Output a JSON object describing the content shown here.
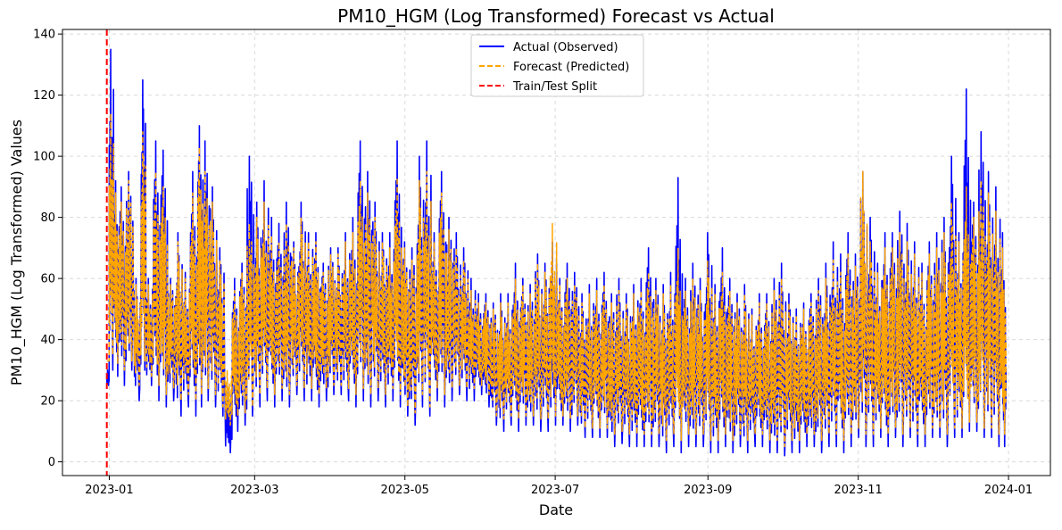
{
  "chart_data": {
    "type": "line",
    "title": "PM10_HGM (Log Transformed) Forecast vs Actual",
    "xlabel": "Date",
    "ylabel": "PM10_HGM (Log Transformed) Values",
    "xlim": [
      "2022-12-13",
      "2024-01-18"
    ],
    "ylim": [
      -4.5,
      141.5
    ],
    "grid": true,
    "legend_position": "top-center",
    "x_ticks": [
      {
        "date": "2023-01-01",
        "label": "2023-01"
      },
      {
        "date": "2023-03-01",
        "label": "2023-03"
      },
      {
        "date": "2023-05-01",
        "label": "2023-05"
      },
      {
        "date": "2023-07-01",
        "label": "2023-07"
      },
      {
        "date": "2023-09-01",
        "label": "2023-09"
      },
      {
        "date": "2023-11-01",
        "label": "2023-11"
      },
      {
        "date": "2024-01-01",
        "label": "2024-01"
      }
    ],
    "y_ticks": [
      {
        "value": 0,
        "label": "0"
      },
      {
        "value": 20,
        "label": "20"
      },
      {
        "value": 40,
        "label": "40"
      },
      {
        "value": 60,
        "label": "60"
      },
      {
        "value": 80,
        "label": "80"
      },
      {
        "value": 100,
        "label": "100"
      },
      {
        "value": 120,
        "label": "120"
      },
      {
        "value": 140,
        "label": "140"
      }
    ],
    "split_date": "2022-12-31",
    "series": [
      {
        "name": "Actual (Observed)",
        "color": "#0000ff",
        "style": "solid",
        "x": [
          "2022-12-31",
          "2023-01-01",
          "2023-01-03",
          "2023-01-05",
          "2023-01-08",
          "2023-01-11",
          "2023-01-14",
          "2023-01-16",
          "2023-01-19",
          "2023-01-22",
          "2023-01-25",
          "2023-01-28",
          "2023-01-31",
          "2023-02-03",
          "2023-02-06",
          "2023-02-08",
          "2023-02-11",
          "2023-02-14",
          "2023-02-17",
          "2023-02-20",
          "2023-02-23",
          "2023-02-26",
          "2023-03-01",
          "2023-03-04",
          "2023-03-07",
          "2023-03-10",
          "2023-03-13",
          "2023-03-16",
          "2023-03-19",
          "2023-03-22",
          "2023-03-25",
          "2023-03-28",
          "2023-03-31",
          "2023-04-03",
          "2023-04-06",
          "2023-04-09",
          "2023-04-12",
          "2023-04-15",
          "2023-04-18",
          "2023-04-21",
          "2023-04-24",
          "2023-04-27",
          "2023-04-30",
          "2023-05-03",
          "2023-05-06",
          "2023-05-09",
          "2023-05-12",
          "2023-05-15",
          "2023-05-18",
          "2023-05-21",
          "2023-05-24",
          "2023-05-27",
          "2023-05-30",
          "2023-06-02",
          "2023-06-05",
          "2023-06-08",
          "2023-06-11",
          "2023-06-14",
          "2023-06-17",
          "2023-06-20",
          "2023-06-23",
          "2023-06-26",
          "2023-06-29",
          "2023-07-02",
          "2023-07-05",
          "2023-07-08",
          "2023-07-11",
          "2023-07-14",
          "2023-07-17",
          "2023-07-20",
          "2023-07-23",
          "2023-07-26",
          "2023-07-29",
          "2023-08-01",
          "2023-08-04",
          "2023-08-07",
          "2023-08-10",
          "2023-08-13",
          "2023-08-16",
          "2023-08-19",
          "2023-08-22",
          "2023-08-25",
          "2023-08-28",
          "2023-08-31",
          "2023-09-03",
          "2023-09-06",
          "2023-09-09",
          "2023-09-12",
          "2023-09-15",
          "2023-09-18",
          "2023-09-21",
          "2023-09-24",
          "2023-09-27",
          "2023-09-30",
          "2023-10-03",
          "2023-10-06",
          "2023-10-09",
          "2023-10-12",
          "2023-10-15",
          "2023-10-18",
          "2023-10-21",
          "2023-10-24",
          "2023-10-27",
          "2023-10-30",
          "2023-11-02",
          "2023-11-05",
          "2023-11-08",
          "2023-11-11",
          "2023-11-14",
          "2023-11-17",
          "2023-11-20",
          "2023-11-23",
          "2023-11-26",
          "2023-11-29",
          "2023-12-02",
          "2023-12-05",
          "2023-12-08",
          "2023-12-11",
          "2023-12-14",
          "2023-12-17",
          "2023-12-20",
          "2023-12-23",
          "2023-12-26",
          "2023-12-29",
          "2023-12-31"
        ],
        "high": [
          30,
          135,
          92,
          90,
          95,
          60,
          125,
          60,
          105,
          102,
          60,
          75,
          62,
          95,
          110,
          105,
          90,
          70,
          25,
          60,
          65,
          100,
          85,
          92,
          80,
          78,
          85,
          72,
          85,
          75,
          75,
          65,
          70,
          70,
          75,
          80,
          105,
          95,
          85,
          75,
          75,
          105,
          72,
          70,
          100,
          105,
          75,
          95,
          80,
          75,
          70,
          60,
          55,
          55,
          52,
          55,
          55,
          65,
          60,
          58,
          68,
          65,
          72,
          60,
          65,
          62,
          55,
          58,
          60,
          62,
          55,
          60,
          55,
          58,
          60,
          70,
          60,
          58,
          62,
          93,
          60,
          65,
          60,
          75,
          58,
          70,
          60,
          55,
          58,
          50,
          55,
          55,
          60,
          65,
          55,
          50,
          52,
          55,
          60,
          65,
          72,
          68,
          75,
          68,
          95,
          80,
          65,
          75,
          75,
          82,
          78,
          72,
          65,
          72,
          75,
          80,
          100,
          75,
          122,
          85,
          108,
          95,
          90,
          75,
          56
        ],
        "low": [
          25,
          30,
          28,
          25,
          30,
          20,
          30,
          25,
          20,
          18,
          20,
          15,
          18,
          15,
          18,
          20,
          18,
          15,
          3,
          10,
          12,
          15,
          18,
          20,
          18,
          20,
          18,
          22,
          20,
          20,
          18,
          20,
          22,
          22,
          20,
          18,
          20,
          18,
          20,
          18,
          20,
          18,
          15,
          12,
          18,
          15,
          20,
          18,
          20,
          22,
          20,
          20,
          22,
          18,
          12,
          10,
          12,
          10,
          12,
          12,
          10,
          10,
          12,
          12,
          10,
          12,
          8,
          8,
          8,
          8,
          5,
          6,
          5,
          5,
          5,
          5,
          5,
          3,
          5,
          3,
          5,
          5,
          5,
          3,
          3,
          5,
          3,
          5,
          3,
          5,
          5,
          3,
          3,
          2,
          3,
          3,
          5,
          5,
          3,
          5,
          5,
          3,
          5,
          8,
          5,
          5,
          8,
          5,
          8,
          5,
          8,
          5,
          5,
          8,
          8,
          5,
          8,
          8,
          10,
          10,
          8,
          8,
          5,
          5,
          5
        ]
      },
      {
        "name": "Forecast (Predicted)",
        "color": "#ffa500",
        "style": "dashed",
        "x": [
          "2022-12-31",
          "2023-01-01",
          "2023-01-03",
          "2023-01-05",
          "2023-01-08",
          "2023-01-11",
          "2023-01-14",
          "2023-01-16",
          "2023-01-19",
          "2023-01-22",
          "2023-01-25",
          "2023-01-28",
          "2023-01-31",
          "2023-02-03",
          "2023-02-06",
          "2023-02-08",
          "2023-02-11",
          "2023-02-14",
          "2023-02-17",
          "2023-02-20",
          "2023-02-23",
          "2023-02-26",
          "2023-03-01",
          "2023-03-04",
          "2023-03-07",
          "2023-03-10",
          "2023-03-13",
          "2023-03-16",
          "2023-03-19",
          "2023-03-22",
          "2023-03-25",
          "2023-03-28",
          "2023-03-31",
          "2023-04-03",
          "2023-04-06",
          "2023-04-09",
          "2023-04-12",
          "2023-04-15",
          "2023-04-18",
          "2023-04-21",
          "2023-04-24",
          "2023-04-27",
          "2023-04-30",
          "2023-05-03",
          "2023-05-06",
          "2023-05-09",
          "2023-05-12",
          "2023-05-15",
          "2023-05-18",
          "2023-05-21",
          "2023-05-24",
          "2023-05-27",
          "2023-05-30",
          "2023-06-02",
          "2023-06-05",
          "2023-06-08",
          "2023-06-11",
          "2023-06-14",
          "2023-06-17",
          "2023-06-20",
          "2023-06-23",
          "2023-06-26",
          "2023-06-29",
          "2023-07-02",
          "2023-07-05",
          "2023-07-08",
          "2023-07-11",
          "2023-07-14",
          "2023-07-17",
          "2023-07-20",
          "2023-07-23",
          "2023-07-26",
          "2023-07-29",
          "2023-08-01",
          "2023-08-04",
          "2023-08-07",
          "2023-08-10",
          "2023-08-13",
          "2023-08-16",
          "2023-08-19",
          "2023-08-22",
          "2023-08-25",
          "2023-08-28",
          "2023-08-31",
          "2023-09-03",
          "2023-09-06",
          "2023-09-09",
          "2023-09-12",
          "2023-09-15",
          "2023-09-18",
          "2023-09-21",
          "2023-09-24",
          "2023-09-27",
          "2023-09-30",
          "2023-10-03",
          "2023-10-06",
          "2023-10-09",
          "2023-10-12",
          "2023-10-15",
          "2023-10-18",
          "2023-10-21",
          "2023-10-24",
          "2023-10-27",
          "2023-10-30",
          "2023-11-02",
          "2023-11-05",
          "2023-11-08",
          "2023-11-11",
          "2023-11-14",
          "2023-11-17",
          "2023-11-20",
          "2023-11-23",
          "2023-11-26",
          "2023-11-29",
          "2023-12-02",
          "2023-12-05",
          "2023-12-08",
          "2023-12-11",
          "2023-12-14",
          "2023-12-17",
          "2023-12-20",
          "2023-12-23",
          "2023-12-26",
          "2023-12-29",
          "2023-12-31"
        ],
        "high": [
          33,
          114,
          88,
          85,
          92,
          58,
          108,
          58,
          95,
          90,
          58,
          72,
          60,
          88,
          103,
          95,
          85,
          66,
          30,
          56,
          62,
          78,
          80,
          85,
          74,
          72,
          78,
          70,
          80,
          72,
          72,
          62,
          68,
          68,
          72,
          75,
          92,
          88,
          80,
          72,
          70,
          93,
          70,
          66,
          92,
          95,
          72,
          88,
          76,
          70,
          66,
          56,
          52,
          52,
          50,
          52,
          52,
          60,
          58,
          55,
          65,
          62,
          78,
          58,
          60,
          58,
          52,
          55,
          56,
          58,
          52,
          56,
          52,
          55,
          56,
          62,
          56,
          55,
          58,
          70,
          56,
          60,
          56,
          66,
          55,
          62,
          56,
          52,
          55,
          48,
          52,
          52,
          56,
          60,
          52,
          48,
          50,
          52,
          56,
          60,
          66,
          62,
          68,
          64,
          95,
          72,
          62,
          70,
          70,
          75,
          72,
          68,
          62,
          68,
          70,
          75,
          85,
          72,
          90,
          80,
          92,
          88,
          82,
          70,
          52
        ],
        "low": [
          33,
          35,
          32,
          30,
          33,
          25,
          33,
          28,
          25,
          22,
          24,
          20,
          22,
          20,
          22,
          24,
          22,
          18,
          12,
          15,
          16,
          18,
          22,
          24,
          22,
          24,
          22,
          25,
          24,
          24,
          22,
          24,
          25,
          25,
          24,
          22,
          24,
          22,
          24,
          22,
          24,
          22,
          18,
          16,
          22,
          18,
          24,
          22,
          24,
          25,
          24,
          24,
          25,
          22,
          15,
          14,
          15,
          14,
          15,
          15,
          14,
          14,
          15,
          15,
          14,
          15,
          11,
          11,
          11,
          11,
          9,
          10,
          9,
          9,
          9,
          9,
          9,
          7,
          9,
          7,
          9,
          9,
          9,
          7,
          7,
          9,
          7,
          9,
          7,
          9,
          9,
          7,
          7,
          5,
          7,
          7,
          9,
          9,
          7,
          9,
          9,
          7,
          9,
          11,
          9,
          9,
          11,
          9,
          11,
          9,
          11,
          9,
          9,
          11,
          11,
          9,
          11,
          11,
          13,
          13,
          11,
          11,
          9,
          9,
          28
        ]
      }
    ]
  }
}
